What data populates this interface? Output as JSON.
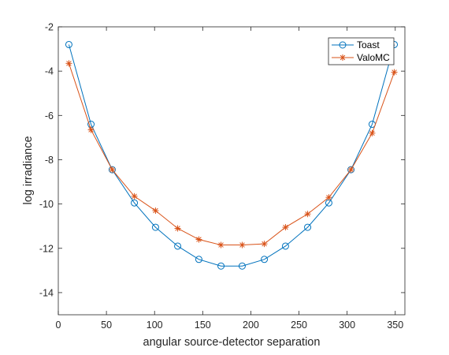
{
  "chart_data": {
    "type": "line",
    "title": "",
    "xlabel": "angular source-detector separation",
    "ylabel": "log irradiance",
    "xlim": [
      0,
      360
    ],
    "ylim": [
      -15,
      -2
    ],
    "x_ticks": [
      0,
      50,
      100,
      150,
      200,
      250,
      300,
      350
    ],
    "y_ticks": [
      -2,
      -4,
      -6,
      -8,
      -10,
      -12,
      -14
    ],
    "grid": false,
    "legend_position": "top-right",
    "series": [
      {
        "name": "Toast",
        "color": "#0072BD",
        "marker": "circle",
        "x": [
          11,
          34,
          56,
          79,
          101,
          124,
          146,
          169,
          191,
          214,
          236,
          259,
          281,
          304,
          326,
          349
        ],
        "y": [
          -2.8,
          -6.4,
          -8.45,
          -9.95,
          -11.05,
          -11.9,
          -12.5,
          -12.8,
          -12.8,
          -12.5,
          -11.9,
          -11.05,
          -9.95,
          -8.45,
          -6.4,
          -2.8
        ]
      },
      {
        "name": "ValoMC",
        "color": "#D95319",
        "marker": "asterisk",
        "x": [
          11,
          34,
          56,
          79,
          101,
          124,
          146,
          169,
          191,
          214,
          236,
          259,
          281,
          304,
          326,
          349
        ],
        "y": [
          -3.65,
          -6.65,
          -8.45,
          -9.65,
          -10.3,
          -11.1,
          -11.6,
          -11.85,
          -11.85,
          -11.8,
          -11.05,
          -10.45,
          -9.7,
          -8.45,
          -6.8,
          -4.05
        ]
      }
    ]
  }
}
